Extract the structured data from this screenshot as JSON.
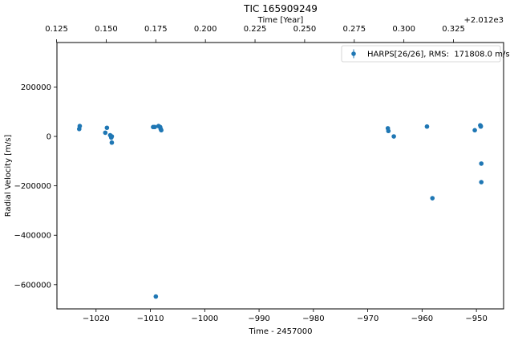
{
  "chart_data": {
    "type": "scatter",
    "title": "TIC 165909249",
    "xlabel": "Time - 2457000",
    "ylabel": "Radial Velocity [m/s]",
    "top_xlabel": "Time [Year]",
    "top_offset_label": "+2.012e3",
    "xlim": [
      -1027.2,
      -945.0
    ],
    "ylim": [
      -698000,
      380000
    ],
    "x_ticks": [
      -1020,
      -1010,
      -1000,
      -990,
      -980,
      -970,
      -960,
      -950
    ],
    "x_tick_labels": [
      "−1020",
      "−1010",
      "−1000",
      "−990",
      "−980",
      "−970",
      "−960",
      "−950"
    ],
    "y_ticks": [
      200000,
      0,
      -200000,
      -400000,
      -600000
    ],
    "y_tick_labels": [
      "200000",
      "0",
      "−200000",
      "−400000",
      "−600000"
    ],
    "top_ticks": [
      0.125,
      0.15,
      0.175,
      0.2,
      0.225,
      0.25,
      0.275,
      0.3,
      0.325
    ],
    "top_tick_labels": [
      "0.125",
      "0.150",
      "0.175",
      "0.200",
      "0.225",
      "0.250",
      "0.275",
      "0.300",
      "0.325"
    ],
    "top_axis_scale": {
      "x_ref": -1020,
      "year_ref": 0.1449,
      "days_per_year": 365.25
    },
    "grid": false,
    "legend_placement": "top-right",
    "series": [
      {
        "name": "HARPS[26/26], RMS:  171808.0 m/s",
        "color": "#1f77b4",
        "x": [
          -1023.1,
          -1023.0,
          -1018.3,
          -1018.0,
          -1017.4,
          -1017.2,
          -1017.1,
          -1017.1,
          -1009.5,
          -1009.2,
          -1009.0,
          -1008.5,
          -1008.2,
          -1008.1,
          -1008.0,
          -966.3,
          -966.2,
          -965.2,
          -959.1,
          -958.1,
          -950.3,
          -949.3,
          -949.2,
          -949.1,
          -949.1,
          -949.2
        ],
        "y": [
          30000,
          42000,
          15000,
          35000,
          5000,
          -5000,
          -25000,
          0,
          38000,
          38000,
          -648000,
          42000,
          38000,
          30000,
          25000,
          33000,
          22000,
          0,
          40000,
          -250000,
          25000,
          45000,
          40000,
          -110000,
          -185000,
          42000
        ]
      }
    ]
  }
}
